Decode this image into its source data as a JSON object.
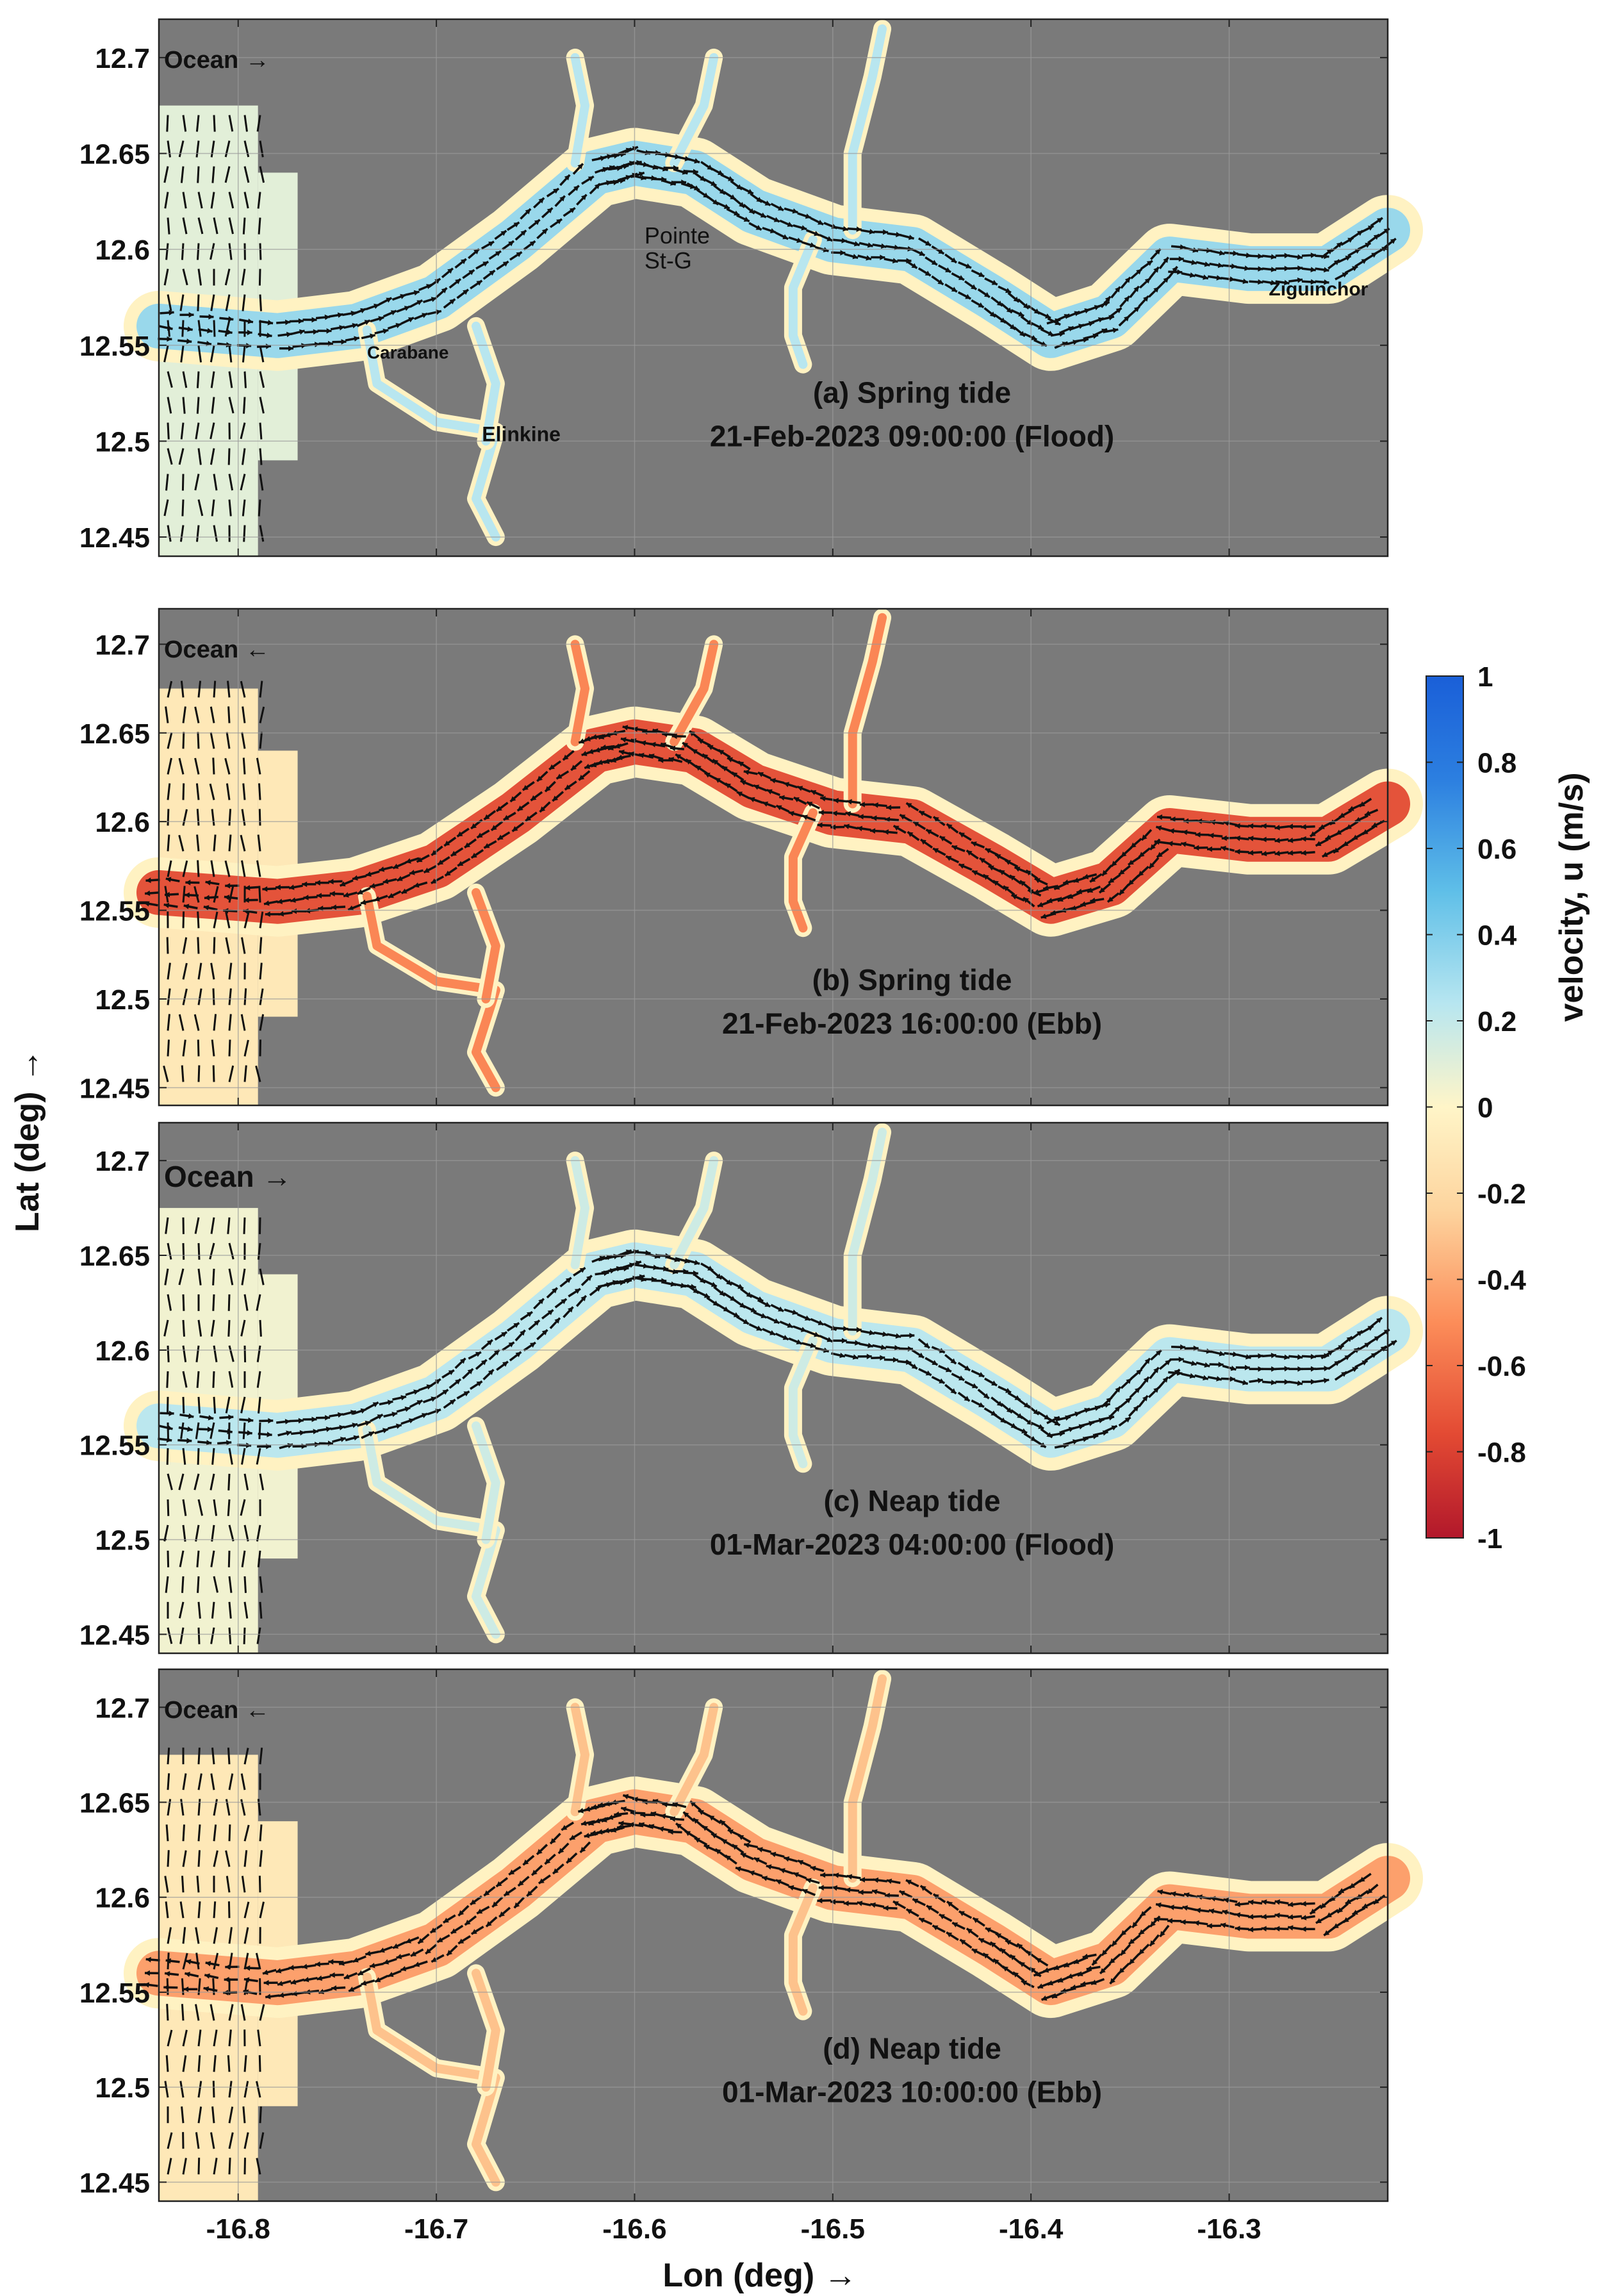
{
  "figure": {
    "xlabel": "Lon (deg) →",
    "ylabel": "Lat (deg) →",
    "colorbar_label": "velocity, u  (m/s)"
  },
  "chart_data": {
    "type": "heatmap",
    "subtype": "velocity-vector-map",
    "xlim": [
      -16.84,
      -16.22
    ],
    "ylim": [
      12.44,
      12.72
    ],
    "x_ticks": [
      -16.8,
      -16.7,
      -16.6,
      -16.5,
      -16.4,
      -16.3
    ],
    "x_tick_labels": [
      "-16.8",
      "-16.7",
      "-16.6",
      "-16.5",
      "-16.4",
      "-16.3"
    ],
    "y_ticks": [
      12.7,
      12.65,
      12.6,
      12.55,
      12.5,
      12.45
    ],
    "y_tick_labels": [
      "12.7",
      "12.65",
      "12.6",
      "12.55",
      "12.5",
      "12.45"
    ],
    "grid": true,
    "colorbar": {
      "label": "velocity, u  (m/s)",
      "range": [
        -1,
        1
      ],
      "ticks": [
        1,
        0.8,
        0.6,
        0.4,
        0.2,
        0,
        -0.2,
        -0.4,
        -0.6,
        -0.8,
        -1
      ],
      "tick_labels": [
        "1",
        "0.8",
        "0.6",
        "0.4",
        "0.2",
        "0",
        "-0.2",
        "-0.4",
        "-0.6",
        "-0.8",
        "-1"
      ],
      "colors": [
        "#b2182b",
        "#e34a33",
        "#fc8d59",
        "#fdd49e",
        "#fff5c8",
        "#b7e6f0",
        "#5fbfe8",
        "#2c7fe0",
        "#1a5fd8"
      ]
    },
    "channel_centerline": [
      [
        -16.84,
        12.56
      ],
      [
        -16.78,
        12.555
      ],
      [
        -16.74,
        12.56
      ],
      [
        -16.7,
        12.575
      ],
      [
        -16.66,
        12.605
      ],
      [
        -16.62,
        12.64
      ],
      [
        -16.6,
        12.645
      ],
      [
        -16.57,
        12.64
      ],
      [
        -16.54,
        12.62
      ],
      [
        -16.5,
        12.605
      ],
      [
        -16.46,
        12.6
      ],
      [
        -16.42,
        12.575
      ],
      [
        -16.39,
        12.555
      ],
      [
        -16.36,
        12.565
      ],
      [
        -16.33,
        12.595
      ],
      [
        -16.29,
        12.59
      ],
      [
        -16.25,
        12.59
      ],
      [
        -16.22,
        12.61
      ]
    ],
    "panels": [
      {
        "id": "a",
        "title_line1": "(a) Spring tide",
        "title_line2": "21-Feb-2023 09:00:00 (Flood)",
        "ocean_label": "Ocean →",
        "phase": "flood",
        "channel_velocity": 0.35,
        "coast_velocity": 0.1,
        "place_labels": [
          "Pointe",
          "St-G",
          "Carabane",
          "Elinkine",
          "Ziguinchor"
        ]
      },
      {
        "id": "b",
        "title_line1": "(b) Spring tide",
        "title_line2": "21-Feb-2023 16:00:00 (Ebb)",
        "ocean_label": "Ocean ←",
        "phase": "ebb",
        "channel_velocity": -0.75,
        "coast_velocity": -0.1,
        "place_labels": []
      },
      {
        "id": "c",
        "title_line1": "(c) Neap tide",
        "title_line2": "01-Mar-2023 04:00:00 (Flood)",
        "ocean_label": "Ocean →",
        "phase": "flood",
        "channel_velocity": 0.25,
        "coast_velocity": 0.05,
        "place_labels": []
      },
      {
        "id": "d",
        "title_line1": "(d) Neap tide",
        "title_line2": "01-Mar-2023 10:00:00 (Ebb)",
        "ocean_label": "Ocean ←",
        "phase": "ebb",
        "channel_velocity": -0.45,
        "coast_velocity": -0.1,
        "place_labels": []
      }
    ]
  }
}
